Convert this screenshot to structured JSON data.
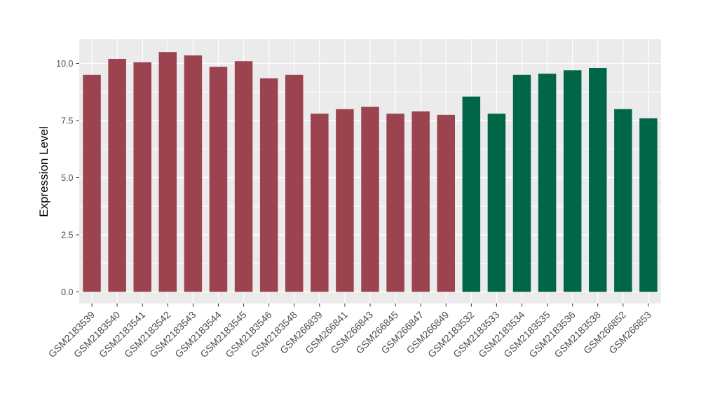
{
  "figure": {
    "title": "",
    "background": "#ffffff"
  },
  "chart_data": {
    "type": "bar",
    "title": "",
    "xlabel": "",
    "ylabel": "Expression Level",
    "categories": [
      "GSM2183539",
      "GSM2183540",
      "GSM2183541",
      "GSM2183542",
      "GSM2183543",
      "GSM2183544",
      "GSM2183545",
      "GSM2183546",
      "GSM2183548",
      "GSM266839",
      "GSM266841",
      "GSM266843",
      "GSM266845",
      "GSM266847",
      "GSM266849",
      "GSM2183532",
      "GSM2183533",
      "GSM2183534",
      "GSM2183535",
      "GSM2183536",
      "GSM2183538",
      "GSM266852",
      "GSM266853"
    ],
    "values": [
      9.5,
      10.2,
      10.05,
      10.5,
      10.35,
      9.85,
      10.1,
      9.35,
      9.5,
      7.8,
      8.0,
      8.1,
      7.8,
      7.9,
      7.75,
      8.55,
      7.8,
      9.5,
      9.55,
      9.7,
      9.8,
      8.0,
      7.6
    ],
    "groups": [
      "maroon",
      "maroon",
      "maroon",
      "maroon",
      "maroon",
      "maroon",
      "maroon",
      "maroon",
      "maroon",
      "maroon",
      "maroon",
      "maroon",
      "maroon",
      "maroon",
      "maroon",
      "green",
      "green",
      "green",
      "green",
      "green",
      "green",
      "green",
      "green"
    ],
    "group_colors": {
      "maroon": "#9B4450",
      "green": "#006647"
    },
    "ytick_labels": [
      "0.0",
      "2.5",
      "5.0",
      "7.5",
      "10.0"
    ],
    "yticks": [
      0,
      2.5,
      5,
      7.5,
      10
    ],
    "minor_yticks": [
      1.25,
      3.75,
      6.25,
      8.75
    ],
    "ylim": [
      -0.55,
      11.06
    ],
    "grid": "on",
    "legend": "none",
    "x_label_rotation_deg": 45,
    "style": {
      "panel_bg": "#EBEBEB",
      "grid_color": "#FFFFFF",
      "tick_color": "#333333",
      "tick_label_color": "#4D4D4D",
      "axis_title_color": "#000000"
    }
  }
}
